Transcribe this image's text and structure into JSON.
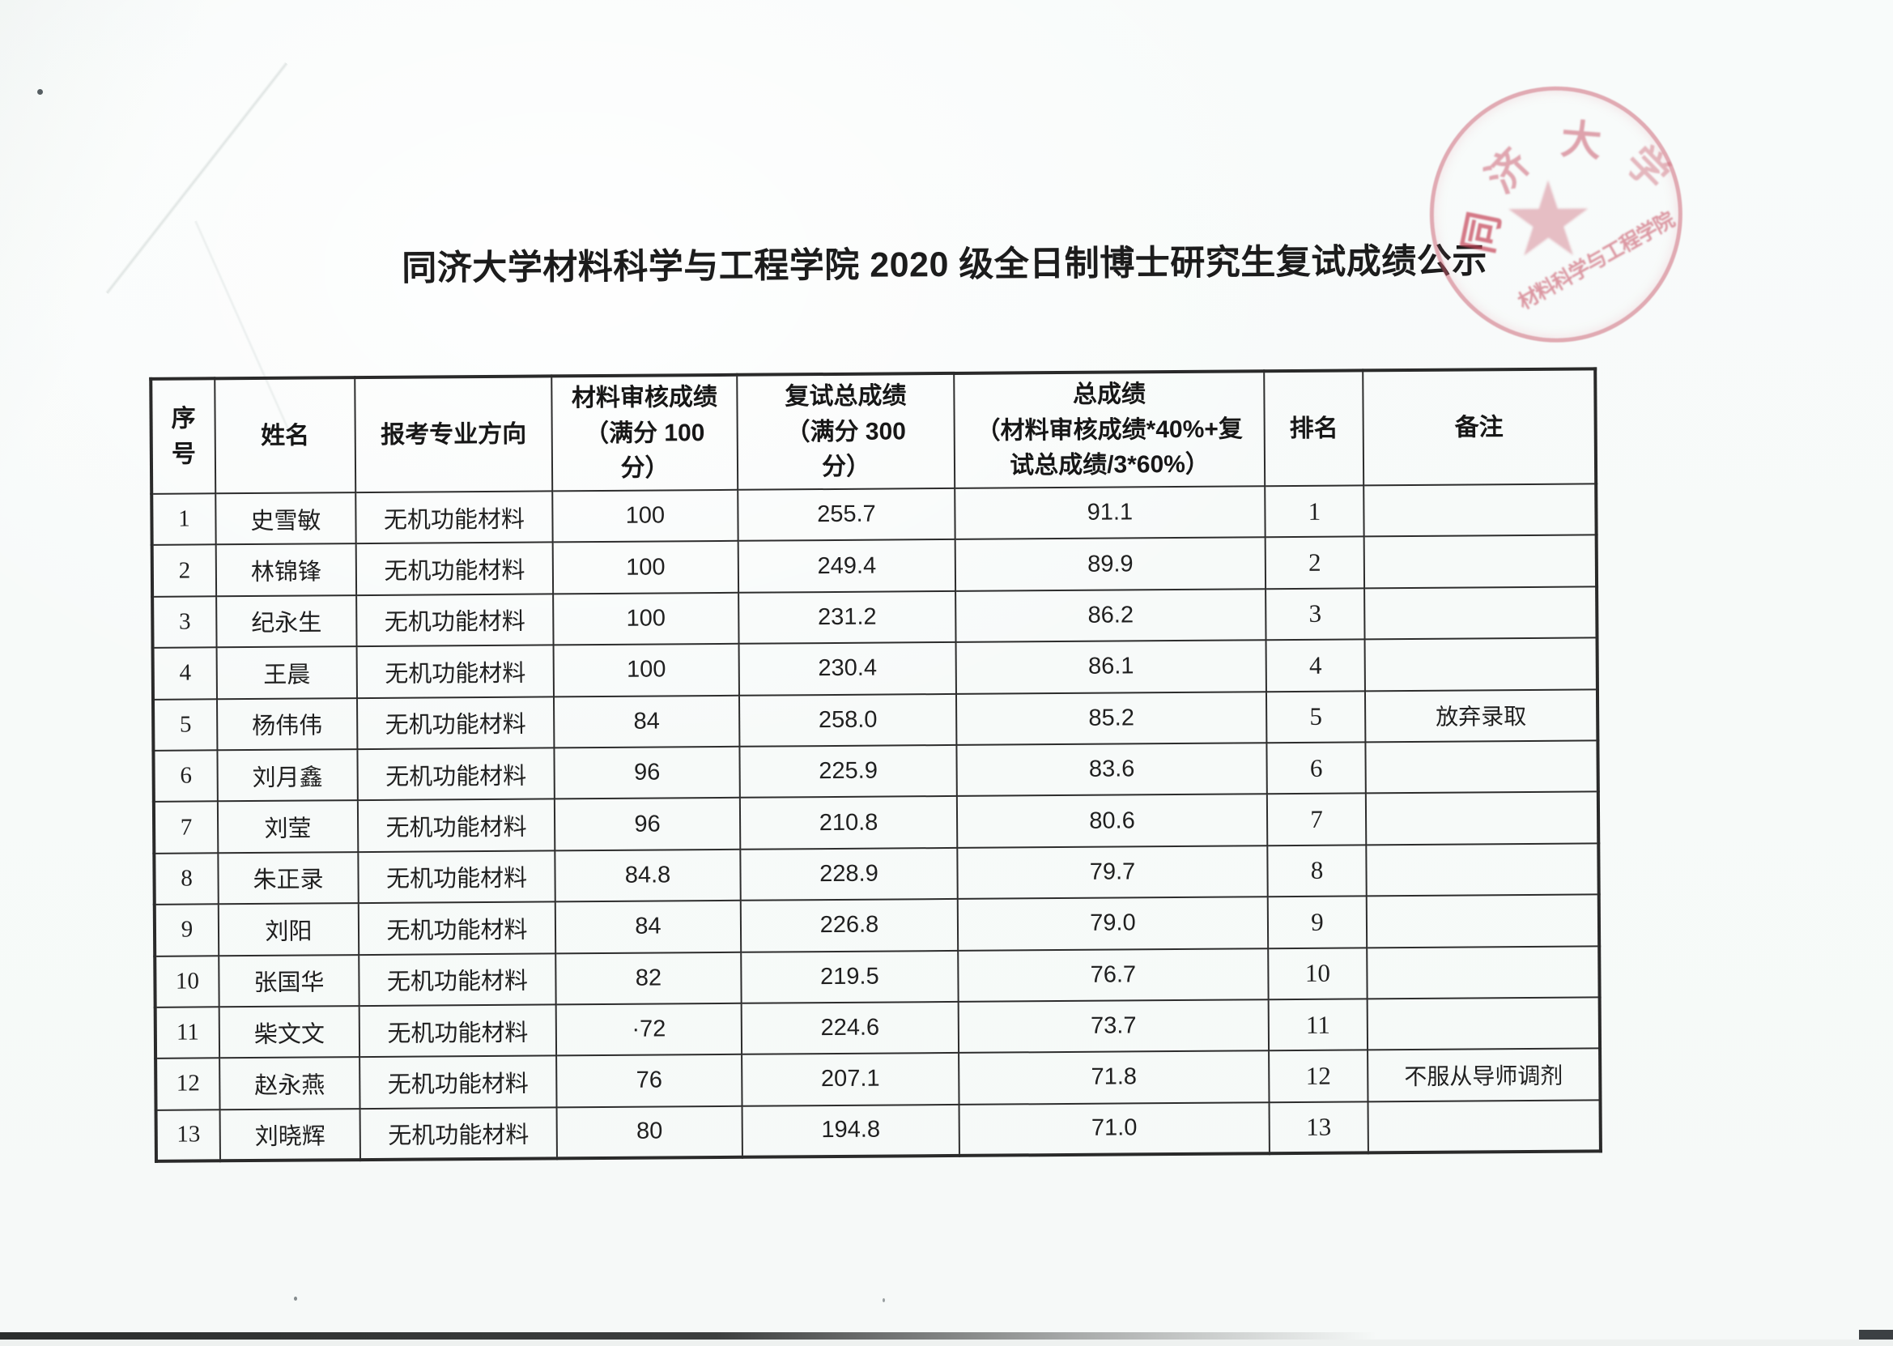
{
  "page": {
    "title": "同济大学材料科学与工程学院 2020 级全日制博士研究生复试成绩公示"
  },
  "colors": {
    "paper": "#f7faf9",
    "ink": "#1f1f1f",
    "seal_red": "#c9596c"
  },
  "stamp": {
    "shape": "circular-seal",
    "star_icon": "★",
    "arc_chars": [
      "同",
      "济",
      "大",
      "学"
    ],
    "bottom_text": "材料科学与工程学院"
  },
  "table": {
    "headers": [
      {
        "key": "no",
        "lines": [
          "序",
          "号"
        ]
      },
      {
        "key": "name",
        "lines": [
          "姓名"
        ]
      },
      {
        "key": "major",
        "lines": [
          "报考专业方向"
        ]
      },
      {
        "key": "material_score",
        "lines": [
          "材料审核成绩",
          "（满分 100",
          "分）"
        ]
      },
      {
        "key": "interview_total",
        "lines": [
          "复试总成绩",
          "（满分 300",
          "分）"
        ]
      },
      {
        "key": "total_score",
        "lines": [
          "总成绩",
          "（材料审核成绩*40%+复",
          "试总成绩/3*60%）"
        ]
      },
      {
        "key": "rank",
        "lines": [
          "排名"
        ]
      },
      {
        "key": "note",
        "lines": [
          "备注"
        ]
      }
    ],
    "rows": [
      {
        "no": "1",
        "name": "史雪敏",
        "major": "无机功能材料",
        "material_score": "100",
        "interview_total": "255.7",
        "total_score": "91.1",
        "rank": "1",
        "note": ""
      },
      {
        "no": "2",
        "name": "林锦锋",
        "major": "无机功能材料",
        "material_score": "100",
        "interview_total": "249.4",
        "total_score": "89.9",
        "rank": "2",
        "note": ""
      },
      {
        "no": "3",
        "name": "纪永生",
        "major": "无机功能材料",
        "material_score": "100",
        "interview_total": "231.2",
        "total_score": "86.2",
        "rank": "3",
        "note": ""
      },
      {
        "no": "4",
        "name": "王晨",
        "major": "无机功能材料",
        "material_score": "100",
        "interview_total": "230.4",
        "total_score": "86.1",
        "rank": "4",
        "note": ""
      },
      {
        "no": "5",
        "name": "杨伟伟",
        "major": "无机功能材料",
        "material_score": "84",
        "interview_total": "258.0",
        "total_score": "85.2",
        "rank": "5",
        "note": "放弃录取"
      },
      {
        "no": "6",
        "name": "刘月鑫",
        "major": "无机功能材料",
        "material_score": "96",
        "interview_total": "225.9",
        "total_score": "83.6",
        "rank": "6",
        "note": ""
      },
      {
        "no": "7",
        "name": "刘莹",
        "major": "无机功能材料",
        "material_score": "96",
        "interview_total": "210.8",
        "total_score": "80.6",
        "rank": "7",
        "note": ""
      },
      {
        "no": "8",
        "name": "朱正录",
        "major": "无机功能材料",
        "material_score": "84.8",
        "interview_total": "228.9",
        "total_score": "79.7",
        "rank": "8",
        "note": ""
      },
      {
        "no": "9",
        "name": "刘阳",
        "major": "无机功能材料",
        "material_score": "84",
        "interview_total": "226.8",
        "total_score": "79.0",
        "rank": "9",
        "note": ""
      },
      {
        "no": "10",
        "name": "张国华",
        "major": "无机功能材料",
        "material_score": "82",
        "interview_total": "219.5",
        "total_score": "76.7",
        "rank": "10",
        "note": ""
      },
      {
        "no": "11",
        "name": "柴文文",
        "major": "无机功能材料",
        "material_score": "·72",
        "interview_total": "224.6",
        "total_score": "73.7",
        "rank": "11",
        "note": ""
      },
      {
        "no": "12",
        "name": "赵永燕",
        "major": "无机功能材料",
        "material_score": "76",
        "interview_total": "207.1",
        "total_score": "71.8",
        "rank": "12",
        "note": "不服从导师调剂"
      },
      {
        "no": "13",
        "name": "刘晓辉",
        "major": "无机功能材料",
        "material_score": "80",
        "interview_total": "194.8",
        "total_score": "71.0",
        "rank": "13",
        "note": ""
      }
    ]
  }
}
